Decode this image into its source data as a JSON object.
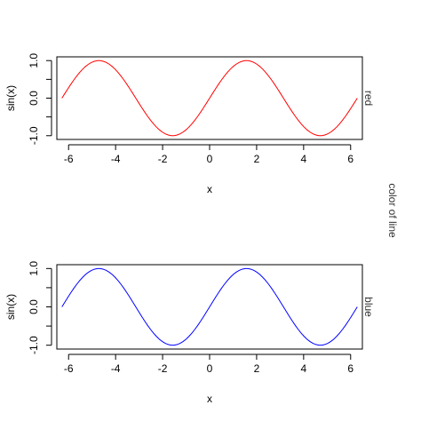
{
  "figure": {
    "outer_label": "color of line"
  },
  "chart_data": [
    {
      "type": "line",
      "function": "sin(x)",
      "xlabel": "x",
      "ylabel": "sin(x)",
      "side_label": "red",
      "line_color": "#ff0000",
      "xlim": [
        -6.5,
        6.5
      ],
      "ylim": [
        -1.1,
        1.1
      ],
      "x_ticks": [
        -6,
        -4,
        -2,
        0,
        2,
        4,
        6
      ],
      "x_tick_labels": [
        "-6",
        "-4",
        "-2",
        "0",
        "2",
        "4",
        "6"
      ],
      "y_ticks": [
        -1,
        -0.5,
        0,
        0.5,
        1
      ],
      "y_tick_labels": [
        "-1.0",
        "",
        "0.0",
        "",
        "1.0"
      ],
      "x_range": [
        -6.2832,
        6.2832
      ],
      "n_points": 101
    },
    {
      "type": "line",
      "function": "sin(x)",
      "xlabel": "x",
      "ylabel": "sin(x)",
      "side_label": "blue",
      "line_color": "#0000ff",
      "xlim": [
        -6.5,
        6.5
      ],
      "ylim": [
        -1.1,
        1.1
      ],
      "x_ticks": [
        -6,
        -4,
        -2,
        0,
        2,
        4,
        6
      ],
      "x_tick_labels": [
        "-6",
        "-4",
        "-2",
        "0",
        "2",
        "4",
        "6"
      ],
      "y_ticks": [
        -1,
        -0.5,
        0,
        0.5,
        1
      ],
      "y_tick_labels": [
        "-1.0",
        "",
        "0.0",
        "",
        "1.0"
      ],
      "x_range": [
        -6.2832,
        6.2832
      ],
      "n_points": 101
    }
  ]
}
